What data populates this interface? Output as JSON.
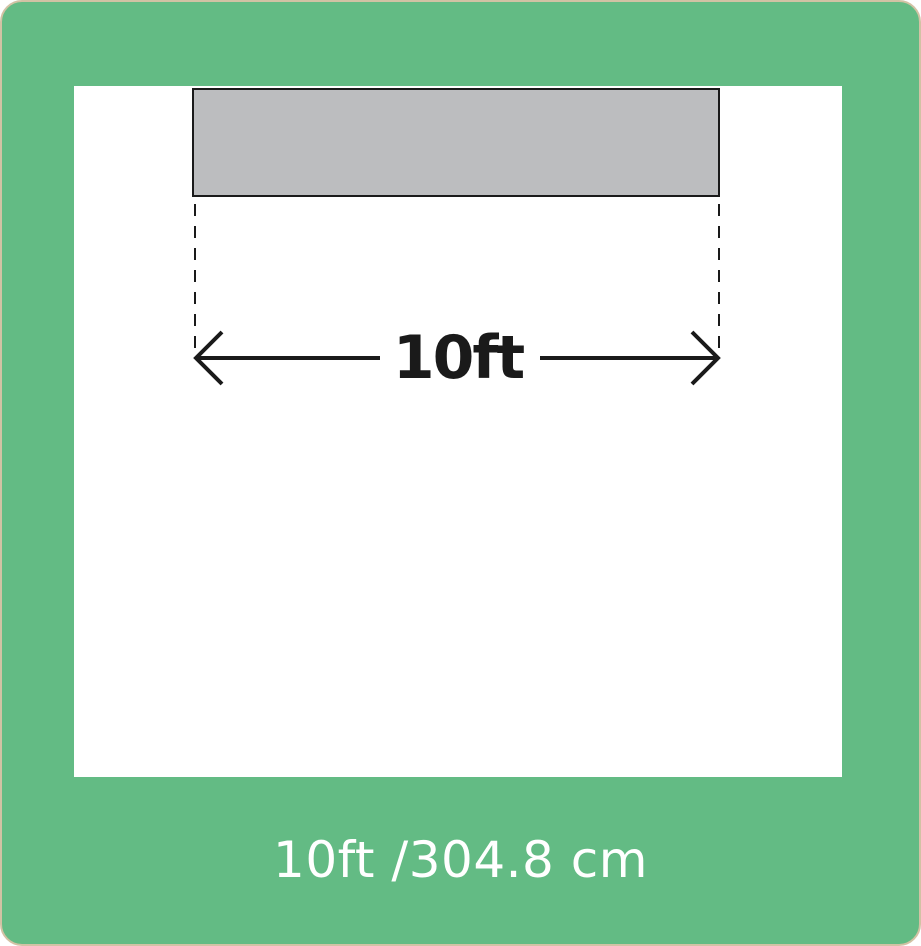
{
  "diagram": {
    "dimension_label": "10ft",
    "caption": "10ft /304.8 cm",
    "colors": {
      "frame": "#63bb84",
      "frame_border": "#d2c2a4",
      "panel": "#ffffff",
      "object_fill": "#bcbdbf",
      "line": "#1a1a1a",
      "caption_text": "#ffffff"
    }
  }
}
